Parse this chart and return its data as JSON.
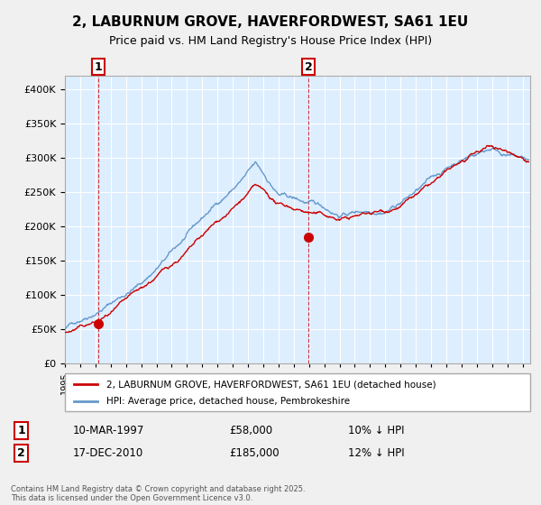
{
  "title1": "2, LABURNUM GROVE, HAVERFORDWEST, SA61 1EU",
  "title2": "Price paid vs. HM Land Registry's House Price Index (HPI)",
  "legend_line1": "2, LABURNUM GROVE, HAVERFORDWEST, SA61 1EU (detached house)",
  "legend_line2": "HPI: Average price, detached house, Pembrokeshire",
  "annotation1_label": "1",
  "annotation1_date": "10-MAR-1997",
  "annotation1_price": "£58,000",
  "annotation1_hpi": "10% ↓ HPI",
  "annotation2_label": "2",
  "annotation2_date": "17-DEC-2010",
  "annotation2_price": "£185,000",
  "annotation2_hpi": "12% ↓ HPI",
  "footer": "Contains HM Land Registry data © Crown copyright and database right 2025.\nThis data is licensed under the Open Government Licence v3.0.",
  "sale1_x": 1997.19,
  "sale1_y": 58000,
  "sale2_x": 2010.96,
  "sale2_y": 185000,
  "red_line_color": "#cc0000",
  "blue_line_color": "#6699cc",
  "background_color": "#ddeeff",
  "plot_bg_color": "#ffffff",
  "ylim": [
    0,
    420000
  ],
  "xlim": [
    1995,
    2025.5
  ]
}
